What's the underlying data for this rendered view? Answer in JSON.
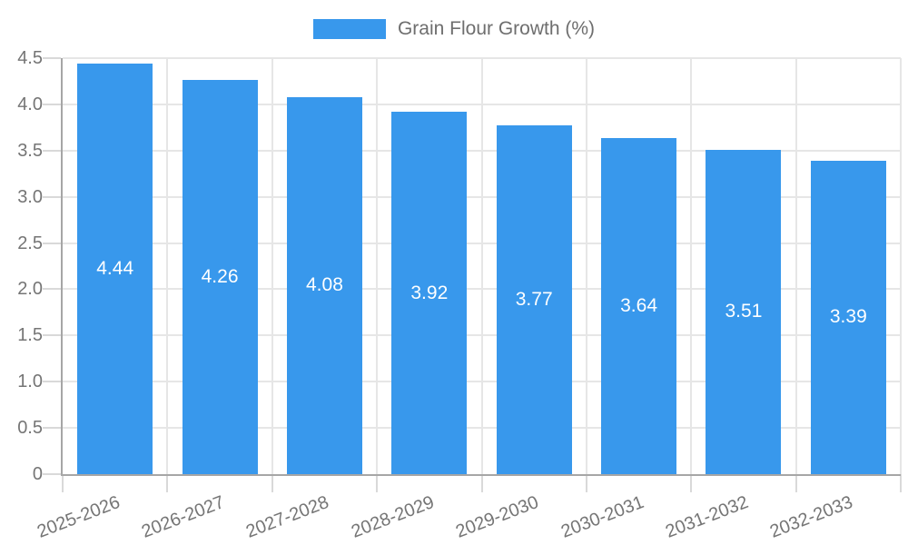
{
  "chart_data": {
    "type": "bar",
    "title": "Grain Flour Growth (%)",
    "legend_entries": [
      "Grain Flour Growth (%)"
    ],
    "legend_position": "top",
    "categories": [
      "2025-2026",
      "2026-2027",
      "2027-2028",
      "2028-2029",
      "2029-2030",
      "2030-2031",
      "2031-2032",
      "2032-2033"
    ],
    "values": [
      4.44,
      4.26,
      4.08,
      3.92,
      3.77,
      3.64,
      3.51,
      3.39
    ],
    "value_labels": [
      "4.44",
      "4.26",
      "4.08",
      "3.92",
      "3.77",
      "3.64",
      "3.51",
      "3.39"
    ],
    "xlabel": "",
    "ylabel": "",
    "ylim": [
      0,
      4.5
    ],
    "ytick_values": [
      0,
      0.5,
      1,
      1.5,
      2,
      2.5,
      3,
      3.5,
      4,
      4.5
    ],
    "ytick_labels": [
      "0",
      "0.5",
      "1.0",
      "1.5",
      "2.0",
      "2.5",
      "3.0",
      "3.5",
      "4.0",
      "4.5"
    ],
    "grid": true,
    "x_label_rotation_deg": -21,
    "colors": {
      "bar": "#3898ec",
      "grid": "#e6e6e6",
      "tick": "#d9d9d9",
      "axis": "#a6a6a6",
      "axis_label_text": "#757575",
      "value_label_text": "#ffffff",
      "legend_text": "#6e6e6e",
      "background": "#ffffff"
    }
  }
}
